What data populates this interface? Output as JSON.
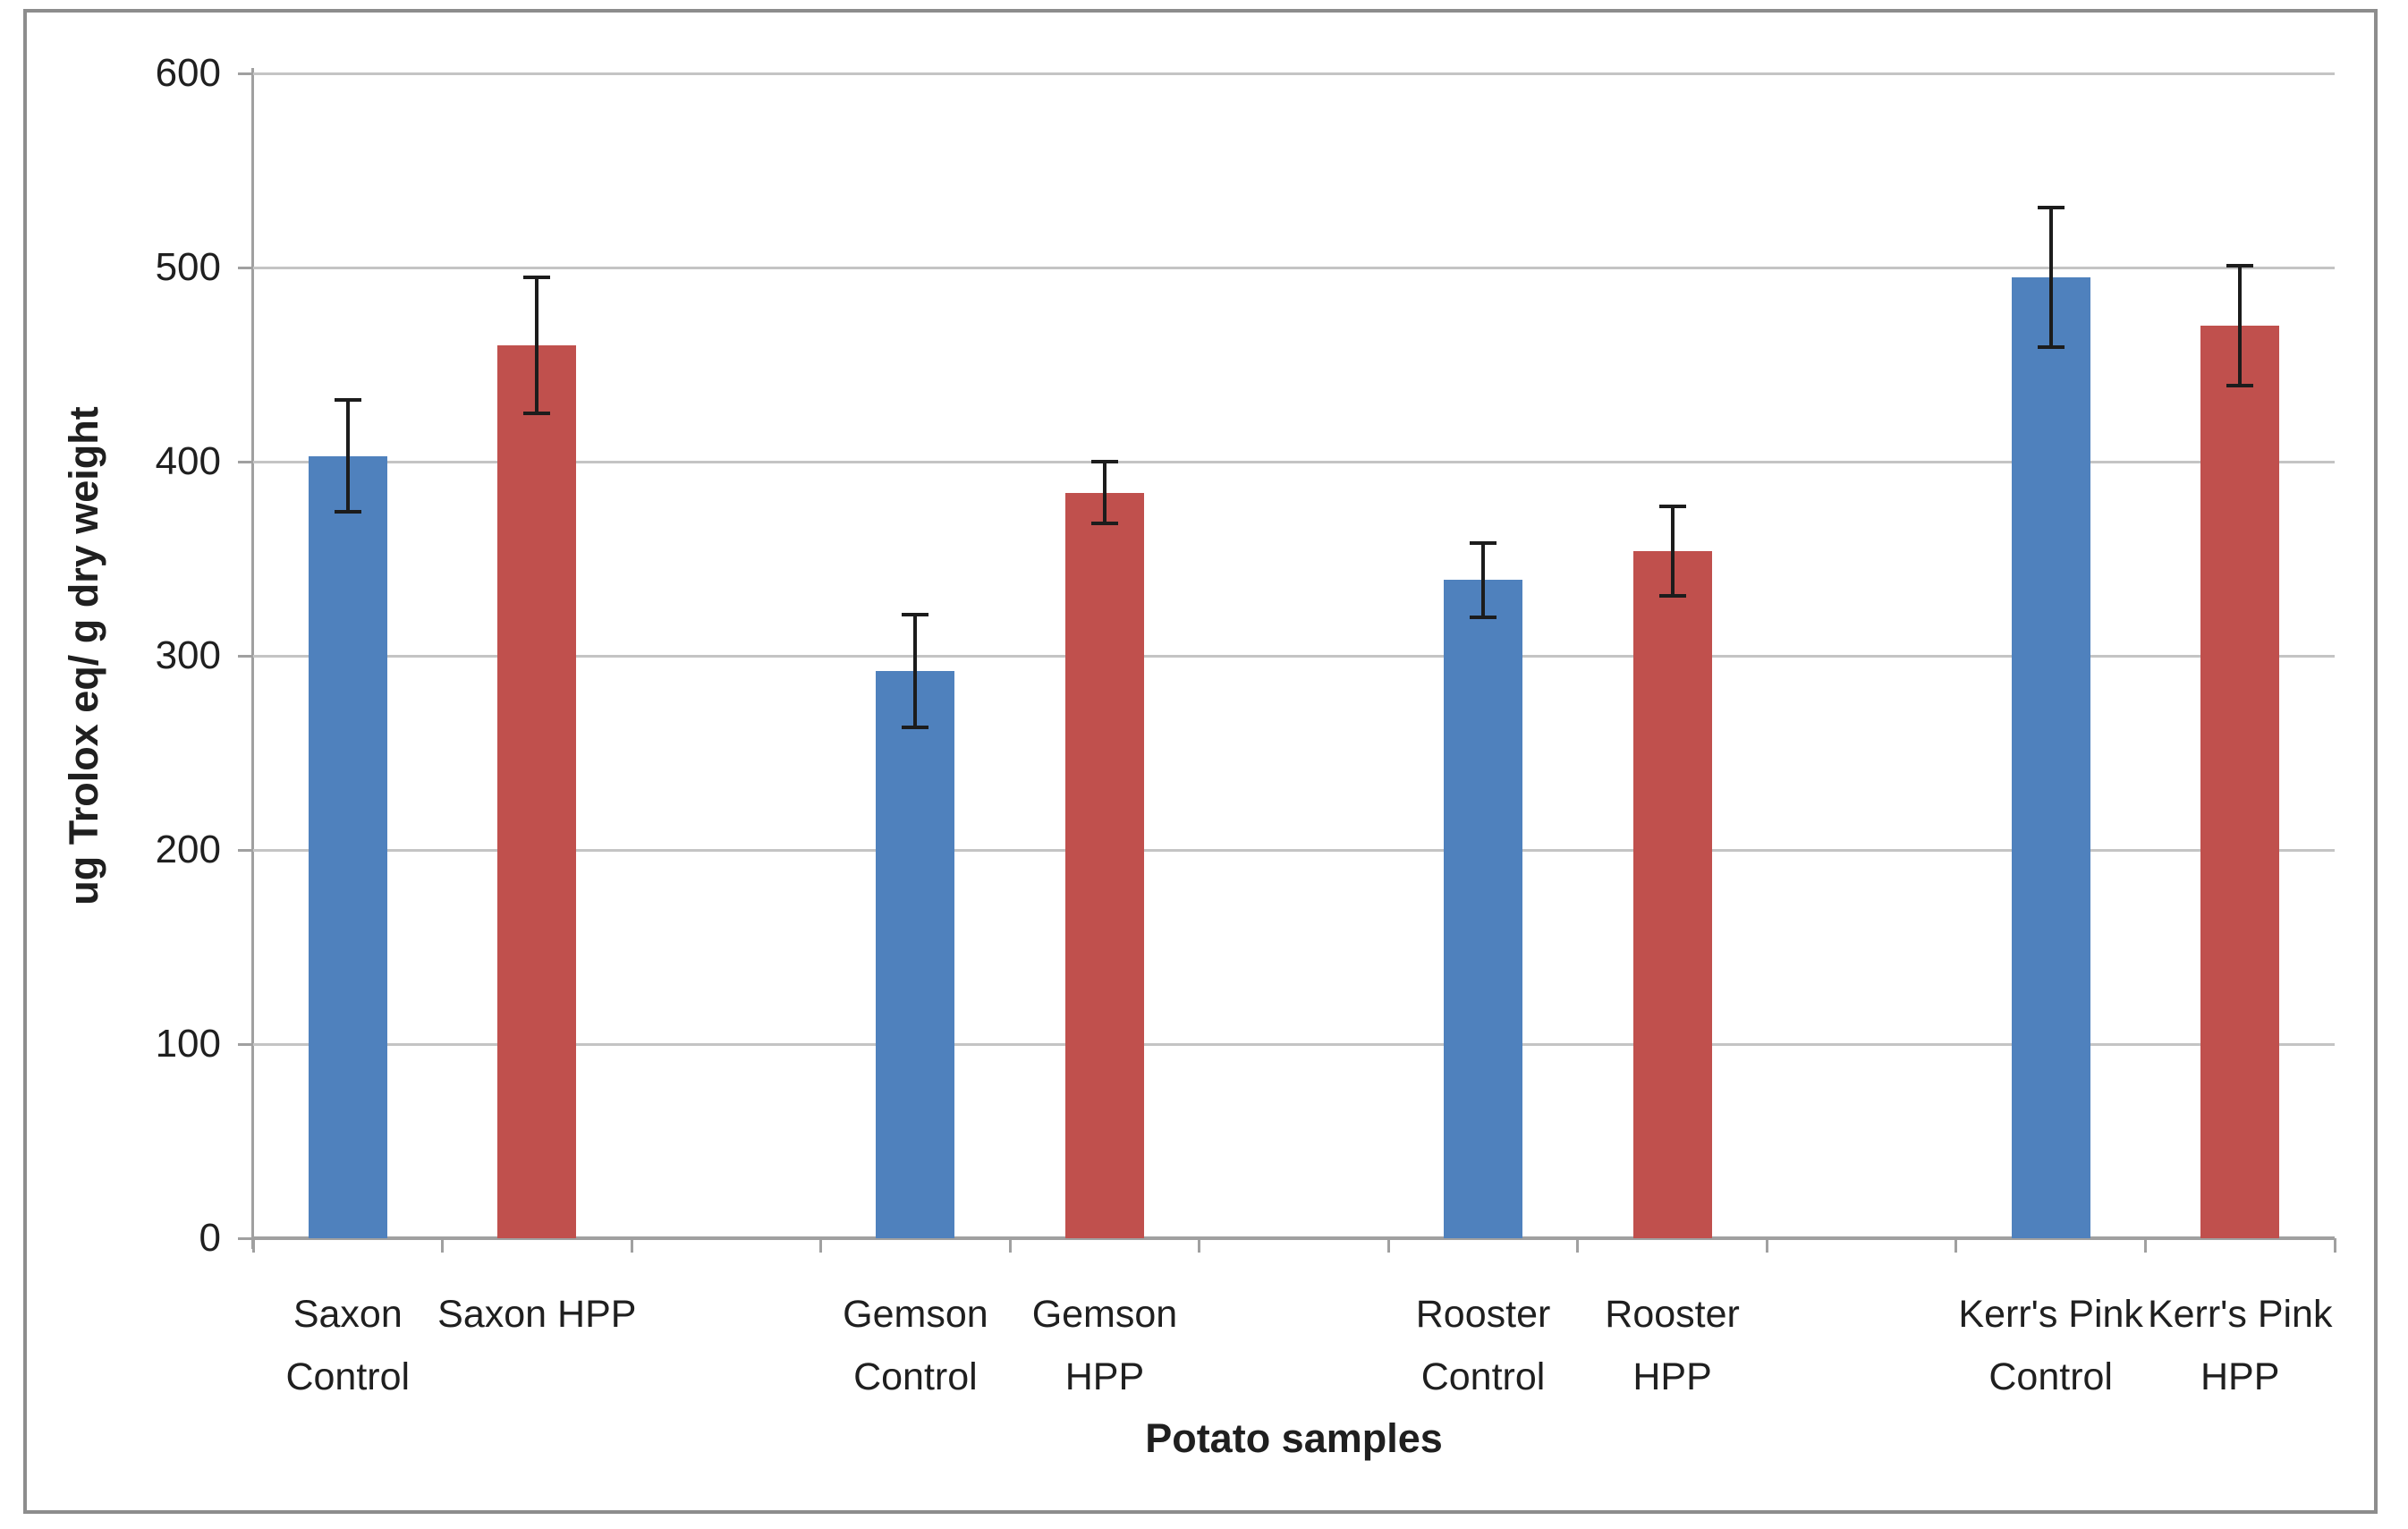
{
  "figure": {
    "background": "#ffffff",
    "border_color": "#8d8d8d"
  },
  "chart_data": {
    "type": "bar",
    "title": "",
    "xlabel": "Potato samples",
    "ylabel": "ug Trolox eq/ g dry weight",
    "ylim": [
      0,
      600
    ],
    "yticks": [
      0,
      100,
      200,
      300,
      400,
      500,
      600
    ],
    "grid": true,
    "legend": false,
    "n_slots": 11,
    "categories": [
      "Saxon Control",
      "Saxon HPP",
      "Gemson Control",
      "Gemson HPP",
      "Rooster Control",
      "Rooster HPP",
      "Kerr's Pink Control",
      "Kerr's Pink HPP"
    ],
    "bars": [
      {
        "label": "Saxon Control",
        "label_lines": [
          "Saxon",
          "Control"
        ],
        "series": "Control",
        "value": 403,
        "error": 29,
        "color": "#4F81BD",
        "slot": 0
      },
      {
        "label": "Saxon HPP",
        "label_lines": [
          "Saxon HPP"
        ],
        "series": "HPP",
        "value": 460,
        "error": 35,
        "color": "#C0504D",
        "slot": 1
      },
      {
        "label": "Gemson Control",
        "label_lines": [
          "Gemson",
          "Control"
        ],
        "series": "Control",
        "value": 292,
        "error": 29,
        "color": "#4F81BD",
        "slot": 3
      },
      {
        "label": "Gemson HPP",
        "label_lines": [
          "Gemson",
          "HPP"
        ],
        "series": "HPP",
        "value": 384,
        "error": 16,
        "color": "#C0504D",
        "slot": 4
      },
      {
        "label": "Rooster Control",
        "label_lines": [
          "Rooster",
          "Control"
        ],
        "series": "Control",
        "value": 339,
        "error": 19,
        "color": "#4F81BD",
        "slot": 6
      },
      {
        "label": "Rooster HPP",
        "label_lines": [
          "Rooster",
          "HPP"
        ],
        "series": "HPP",
        "value": 354,
        "error": 23,
        "color": "#C0504D",
        "slot": 7
      },
      {
        "label": "Kerr's Pink Control",
        "label_lines": [
          "Kerr's Pink",
          "Control"
        ],
        "series": "Control",
        "value": 495,
        "error": 36,
        "color": "#4F81BD",
        "slot": 9
      },
      {
        "label": "Kerr's Pink HPP",
        "label_lines": [
          "Kerr's Pink",
          "HPP"
        ],
        "series": "HPP",
        "value": 470,
        "error": 31,
        "color": "#C0504D",
        "slot": 10
      }
    ],
    "series_colors": {
      "Control": "#4F81BD",
      "HPP": "#C0504D"
    },
    "gridline_color": "#c4c4c4",
    "axis_color": "#a0a0a0",
    "error_bar_color": "#1c1c1c",
    "text_color": "#1f1f1f"
  }
}
